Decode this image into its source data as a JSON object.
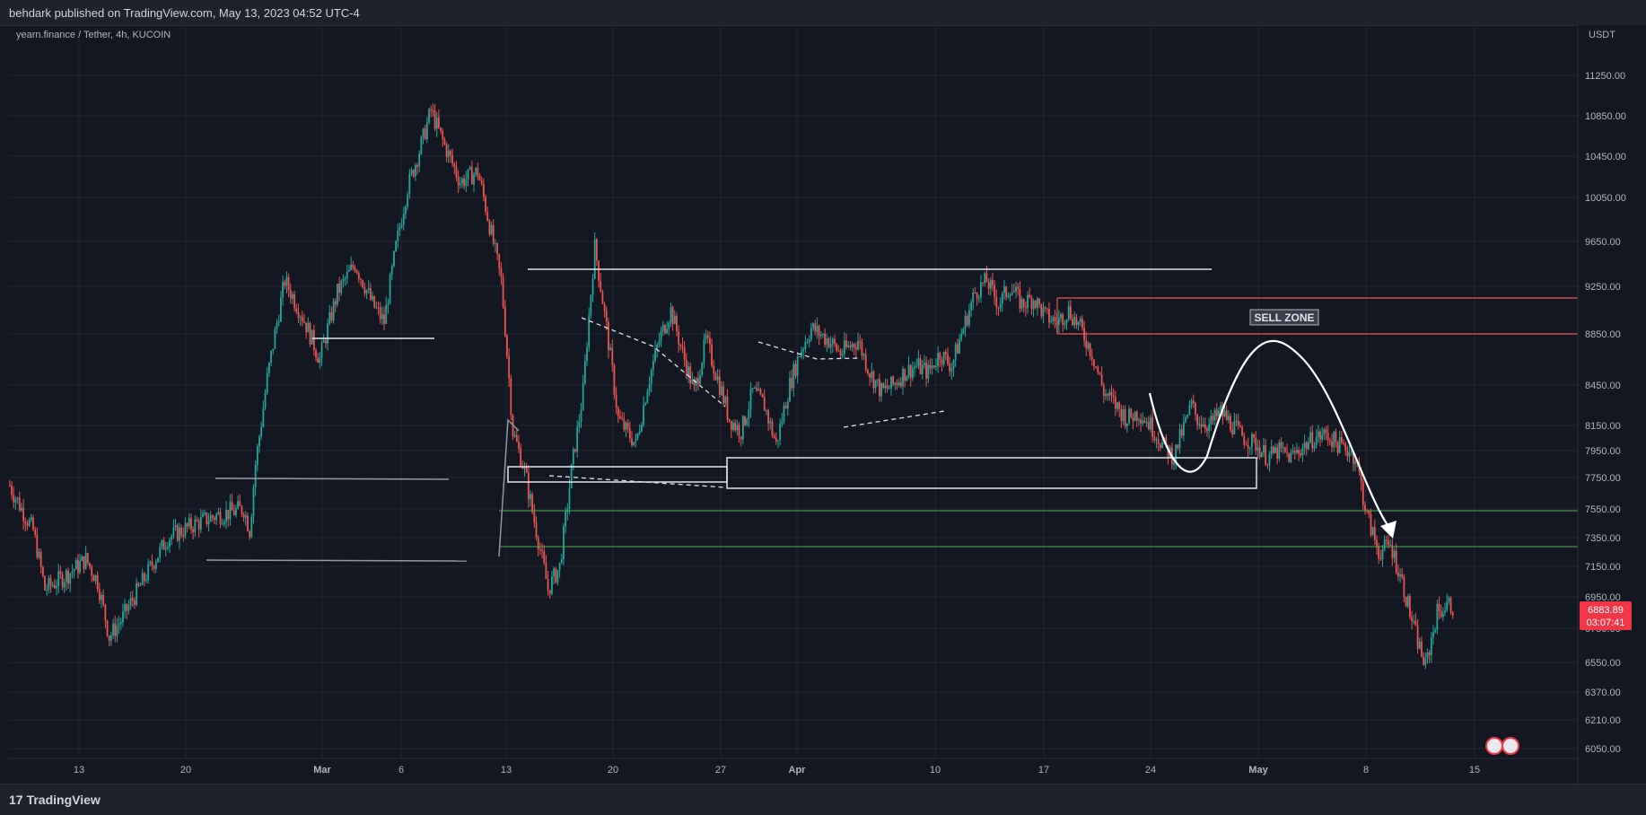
{
  "header": {
    "published": "behdark published on TradingView.com, May 13, 2023 04:52 UTC-4"
  },
  "footer": {
    "brand": "TradingView"
  },
  "colors": {
    "bg": "#131722",
    "up": "#26a69a",
    "down": "#ef5350",
    "grid": "#1f2433",
    "text": "#b2b5be"
  },
  "chart_data": {
    "type": "candlestick",
    "symbol": "yearn.finance / Tether, 4h, KUCOIN",
    "currency": "USDT",
    "last_price": "6883.89",
    "countdown": "03:07:41",
    "ylim": [
      6000,
      11500
    ],
    "y_ticks": [
      "11250.00",
      "10850.00",
      "10450.00",
      "10050.00",
      "9650.00",
      "9250.00",
      "8850.00",
      "8450.00",
      "8150.00",
      "7950.00",
      "7750.00",
      "7550.00",
      "7350.00",
      "7150.00",
      "6950.00",
      "6750.00",
      "6550.00",
      "6370.00",
      "6210.00",
      "6050.00"
    ],
    "x_ticks": [
      "13",
      "20",
      "Mar",
      "6",
      "13",
      "20",
      "27",
      "Apr",
      "10",
      "17",
      "24",
      "May",
      "8",
      "15"
    ],
    "annotation": "SELL ZONE",
    "price_path": [
      [
        0,
        7700
      ],
      [
        4,
        7400
      ],
      [
        6,
        7000
      ],
      [
        10,
        7100
      ],
      [
        13,
        7200
      ],
      [
        15,
        7050
      ],
      [
        17,
        6700
      ],
      [
        19,
        6800
      ],
      [
        22,
        7000
      ],
      [
        27,
        7350
      ],
      [
        32,
        7450
      ],
      [
        35,
        7500
      ],
      [
        40,
        7550
      ],
      [
        41,
        7400
      ],
      [
        42,
        7850
      ],
      [
        44,
        8500
      ],
      [
        47,
        9300
      ],
      [
        50,
        9000
      ],
      [
        53,
        8650
      ],
      [
        56,
        9200
      ],
      [
        59,
        9450
      ],
      [
        62,
        9100
      ],
      [
        64,
        8950
      ],
      [
        66,
        9600
      ],
      [
        68,
        10150
      ],
      [
        70,
        10500
      ],
      [
        72,
        10900
      ],
      [
        74,
        10600
      ],
      [
        77,
        10200
      ],
      [
        80,
        10300
      ],
      [
        82,
        9800
      ],
      [
        84,
        9300
      ],
      [
        86,
        8100
      ],
      [
        88,
        7800
      ],
      [
        90,
        7400
      ],
      [
        92,
        7000
      ],
      [
        94,
        7150
      ],
      [
        96,
        7800
      ],
      [
        98,
        8400
      ],
      [
        100,
        9600
      ],
      [
        102,
        8900
      ],
      [
        104,
        8200
      ],
      [
        107,
        8000
      ],
      [
        109,
        8450
      ],
      [
        111,
        8800
      ],
      [
        113,
        9050
      ],
      [
        115,
        8700
      ],
      [
        117,
        8400
      ],
      [
        119,
        8800
      ],
      [
        121,
        8500
      ],
      [
        123,
        8200
      ],
      [
        125,
        8100
      ],
      [
        127,
        8400
      ],
      [
        129,
        8300
      ],
      [
        131,
        8000
      ],
      [
        133,
        8400
      ],
      [
        135,
        8700
      ],
      [
        137,
        8900
      ],
      [
        140,
        8800
      ],
      [
        142,
        8700
      ],
      [
        145,
        8800
      ],
      [
        147,
        8550
      ],
      [
        149,
        8400
      ],
      [
        151,
        8450
      ],
      [
        153,
        8550
      ],
      [
        155,
        8600
      ],
      [
        157,
        8550
      ],
      [
        159,
        8700
      ],
      [
        161,
        8600
      ],
      [
        163,
        8900
      ],
      [
        165,
        9200
      ],
      [
        167,
        9300
      ],
      [
        169,
        9100
      ],
      [
        171,
        9250
      ],
      [
        173,
        9100
      ],
      [
        175,
        9150
      ],
      [
        177,
        9000
      ],
      [
        179,
        8950
      ],
      [
        181,
        9050
      ],
      [
        183,
        8900
      ],
      [
        185,
        8700
      ],
      [
        187,
        8400
      ],
      [
        189,
        8300
      ],
      [
        191,
        8200
      ],
      [
        193,
        8250
      ],
      [
        195,
        8150
      ],
      [
        197,
        8000
      ],
      [
        199,
        7900
      ],
      [
        200,
        8050
      ],
      [
        202,
        8300
      ],
      [
        203,
        8200
      ],
      [
        205,
        8150
      ],
      [
        207,
        8250
      ],
      [
        209,
        8150
      ],
      [
        211,
        8050
      ],
      [
        213,
        8000
      ],
      [
        215,
        7900
      ],
      [
        217,
        7950
      ],
      [
        219,
        7900
      ],
      [
        221,
        7980
      ],
      [
        223,
        8050
      ],
      [
        225,
        8080
      ],
      [
        227,
        8000
      ],
      [
        229,
        7950
      ],
      [
        230,
        7900
      ],
      [
        232,
        7500
      ],
      [
        234,
        7250
      ],
      [
        236,
        7300
      ],
      [
        238,
        7050
      ],
      [
        240,
        6750
      ],
      [
        242,
        6520
      ],
      [
        244,
        6850
      ],
      [
        246,
        6900
      ],
      [
        247,
        6883.89
      ]
    ]
  }
}
